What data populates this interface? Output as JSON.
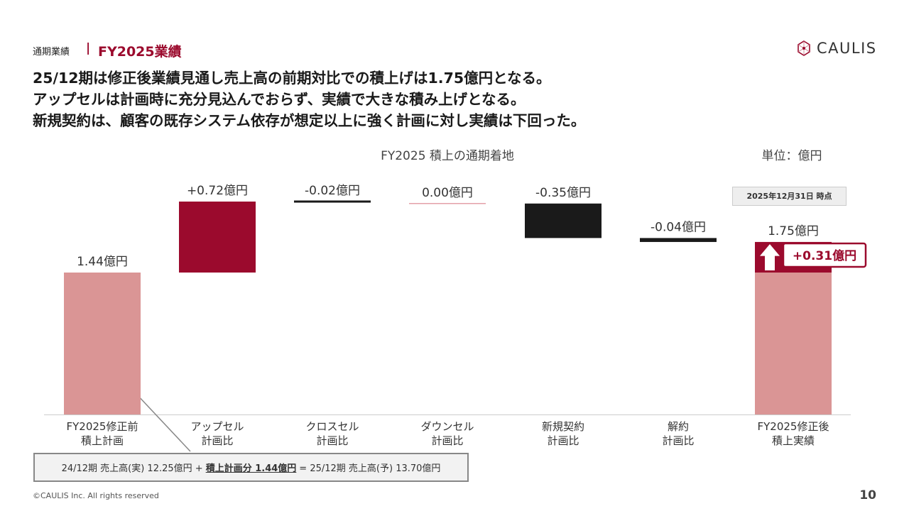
{
  "header": {
    "section_label": "通期業績",
    "separator": "|",
    "section_title": "FY2025業績",
    "logo_text": "CAULIS"
  },
  "headline": [
    "25/12期は修正後業績見通し売上高の前期対比での積上げは1.75億円となる。",
    "アップセルは計画時に充分見込んでおらず、実績で大きな積み上げとなる。",
    "新規契約は、顧客の既存システム依存が想定以上に強く計画に対し実績は下回った。"
  ],
  "chart_data": {
    "type": "bar",
    "title": "FY2025 積上の通期着地",
    "unit_label": "単位：億円",
    "as_of_label": "2025年12月31日 時点",
    "categories": [
      [
        "FY2025修正前",
        "積上計画"
      ],
      [
        "アップセル",
        "計画比"
      ],
      [
        "クロスセル",
        "計画比"
      ],
      [
        "ダウンセル",
        "計画比"
      ],
      [
        "新規契約",
        "計画比"
      ],
      [
        "解約",
        "計画比"
      ],
      [
        "FY2025修正後",
        "積上実績"
      ]
    ],
    "values": [
      1.44,
      0.72,
      -0.02,
      0.0,
      -0.35,
      -0.04,
      1.75
    ],
    "value_labels": [
      "1.44億円",
      "+0.72億円",
      "-0.02億円",
      "0.00億円",
      "-0.35億円",
      "-0.04億円",
      "1.75億円"
    ],
    "kinds": [
      "total",
      "increase",
      "decrease",
      "neutral",
      "decrease",
      "decrease",
      "total"
    ],
    "increase_callout": {
      "value": 0.31,
      "label": "+0.31億円"
    },
    "colors": {
      "total": "#da9595",
      "increase": "#9b0a2d",
      "decrease": "#1a1a1a",
      "neutral": "#e4a0a8",
      "accent": "#9b0a2d",
      "axis": "#cccccc"
    }
  },
  "note": {
    "pre": "24/12期 売上高(実) 12.25億円 +",
    "highlight": "積上計画分 1.44億円",
    "post": "= 25/12期 売上高(予) 13.70億円"
  },
  "footer": {
    "copyright": "©CAULIS Inc. All rights reserved",
    "page_number": "10"
  }
}
